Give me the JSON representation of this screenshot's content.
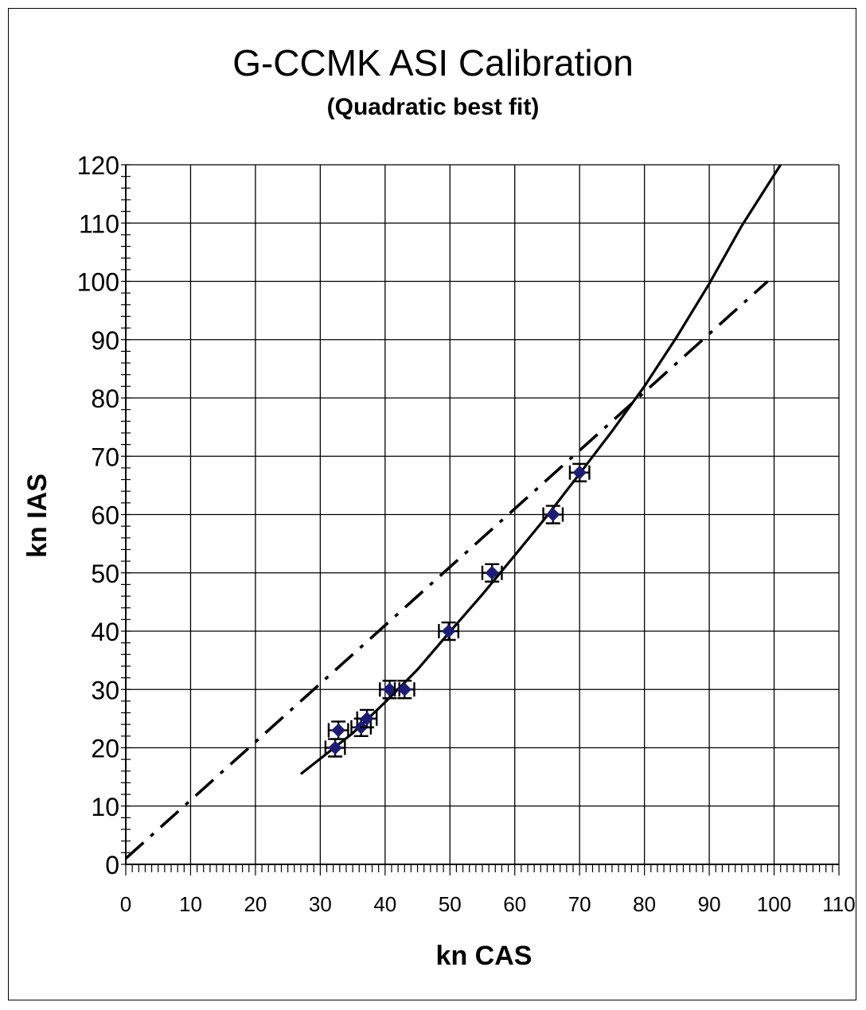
{
  "chart_data": {
    "type": "scatter",
    "title": "G-CCMK ASI Calibration",
    "subtitle": "(Quadratic best fit)",
    "xlabel": "kn CAS",
    "ylabel": "kn IAS",
    "xlim": [
      0,
      110
    ],
    "ylim": [
      0,
      120
    ],
    "x_ticks": [
      0,
      10,
      20,
      30,
      40,
      50,
      60,
      70,
      80,
      90,
      100,
      110
    ],
    "y_ticks": [
      0,
      10,
      20,
      30,
      40,
      50,
      60,
      70,
      80,
      90,
      100,
      110,
      120
    ],
    "grid": true,
    "legend": false,
    "series": [
      {
        "kind": "points_with_error_bars",
        "color": "#1c1c78",
        "points": [
          {
            "x": 32.3,
            "y": 20,
            "xerr": 1.5,
            "yerr": 1.5
          },
          {
            "x": 32.8,
            "y": 23,
            "xerr": 1.5,
            "yerr": 1.5
          },
          {
            "x": 36.3,
            "y": 23.5,
            "xerr": 1.5,
            "yerr": 1.5
          },
          {
            "x": 37.2,
            "y": 25,
            "xerr": 1.5,
            "yerr": 1.5
          },
          {
            "x": 40.7,
            "y": 30,
            "xerr": 1.5,
            "yerr": 1.5
          },
          {
            "x": 43.0,
            "y": 30,
            "xerr": 1.5,
            "yerr": 1.5
          },
          {
            "x": 49.8,
            "y": 40,
            "xerr": 1.5,
            "yerr": 1.5
          },
          {
            "x": 56.5,
            "y": 50,
            "xerr": 1.5,
            "yerr": 1.5
          },
          {
            "x": 65.9,
            "y": 60,
            "xerr": 1.5,
            "yerr": 1.5
          },
          {
            "x": 70.0,
            "y": 67.2,
            "xerr": 1.5,
            "yerr": 1.5
          }
        ]
      },
      {
        "kind": "line",
        "style": "solid",
        "color": "#000000",
        "x": [
          27,
          35,
          40,
          45,
          50,
          55,
          60,
          65,
          70,
          75,
          80,
          85,
          90,
          95,
          101
        ],
        "y": [
          15.5,
          22.5,
          27.8,
          33.4,
          39.9,
          46.3,
          53.0,
          59.8,
          67.0,
          74.3,
          82.0,
          90.5,
          99.6,
          109.5,
          120
        ]
      },
      {
        "kind": "line",
        "style": "dash-dot",
        "color": "#000000",
        "x": [
          0,
          99
        ],
        "y": [
          1,
          100
        ]
      }
    ]
  }
}
